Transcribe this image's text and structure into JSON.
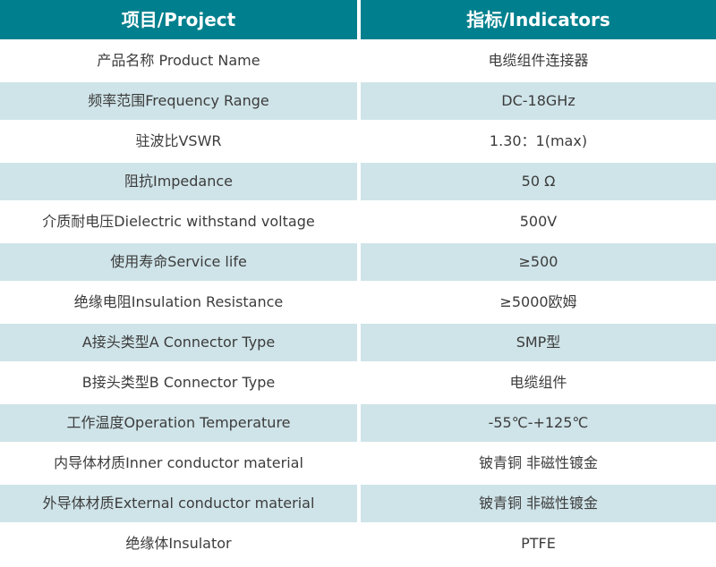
{
  "colors": {
    "header_bg": "#00808E",
    "header_text": "#FFFFFF",
    "row_bg": "#FFFFFF",
    "alt_row_bg": "#CFE4E9",
    "body_text": "#3C3C3C"
  },
  "table": {
    "header": {
      "project": "项目/Project",
      "indicators": "指标/Indicators"
    },
    "rows": [
      {
        "project": "产品名称 Product Name",
        "indicator": "电缆组件连接器"
      },
      {
        "project": "频率范围Frequency Range",
        "indicator": "DC-18GHz"
      },
      {
        "project": "驻波比VSWR",
        "indicator": "1.30：1(max)"
      },
      {
        "project": "阻抗Impedance",
        "indicator": "50 Ω"
      },
      {
        "project": "介质耐电压Dielectric withstand voltage",
        "indicator": "500V"
      },
      {
        "project": "使用寿命Service life",
        "indicator": "≥500"
      },
      {
        "project": "绝缘电阻Insulation Resistance",
        "indicator": "≥5000欧姆"
      },
      {
        "project": "A接头类型A Connector Type",
        "indicator": "SMP型"
      },
      {
        "project": "B接头类型B Connector Type",
        "indicator": "电缆组件"
      },
      {
        "project": "工作温度Operation Temperature",
        "indicator": "-55℃-+125℃"
      },
      {
        "project": "内导体材质Inner conductor material",
        "indicator": "铍青铜 非磁性镀金"
      },
      {
        "project": "外导体材质External conductor material",
        "indicator": "铍青铜 非磁性镀金"
      },
      {
        "project": "绝缘体Insulator",
        "indicator": "PTFE"
      }
    ]
  }
}
